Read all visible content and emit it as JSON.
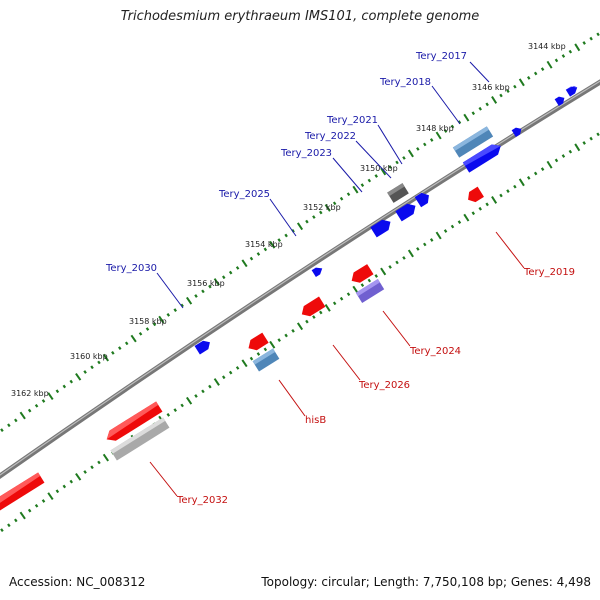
{
  "title": "Trichodesmium erythraeum IMS101, complete genome",
  "footer": {
    "accession": "Accession: NC_008312",
    "summary": "Topology: circular; Length: 7,750,108 bp; Genes: 4,498"
  },
  "colors": {
    "forward_gene": "#0a0aee",
    "reverse_gene": "#ee0a0a",
    "label_forward": "#1a1aa8",
    "label_reverse": "#c41010",
    "backbone": "#777777",
    "ruler": "#1f7a1f",
    "other_feature": "#4f86b8",
    "pseudo_feature": "#a9a9a9",
    "rna_feature": "#7060d0",
    "dark_feature": "#555555"
  },
  "ruler_labels": [
    "3144 kbp",
    "3146 kbp",
    "3148 kbp",
    "3150 kbp",
    "3152 kbp",
    "3154 kbp",
    "3156 kbp",
    "3158 kbp",
    "3160 kbp",
    "3162 kbp"
  ],
  "gene_labels": {
    "forward": [
      "Tery_2017",
      "Tery_2018",
      "Tery_2021",
      "Tery_2022",
      "Tery_2023",
      "Tery_2025",
      "Tery_2030"
    ],
    "reverse": [
      "Tery_2019",
      "Tery_2024",
      "Tery_2026",
      "hisB",
      "Tery_2032"
    ]
  }
}
